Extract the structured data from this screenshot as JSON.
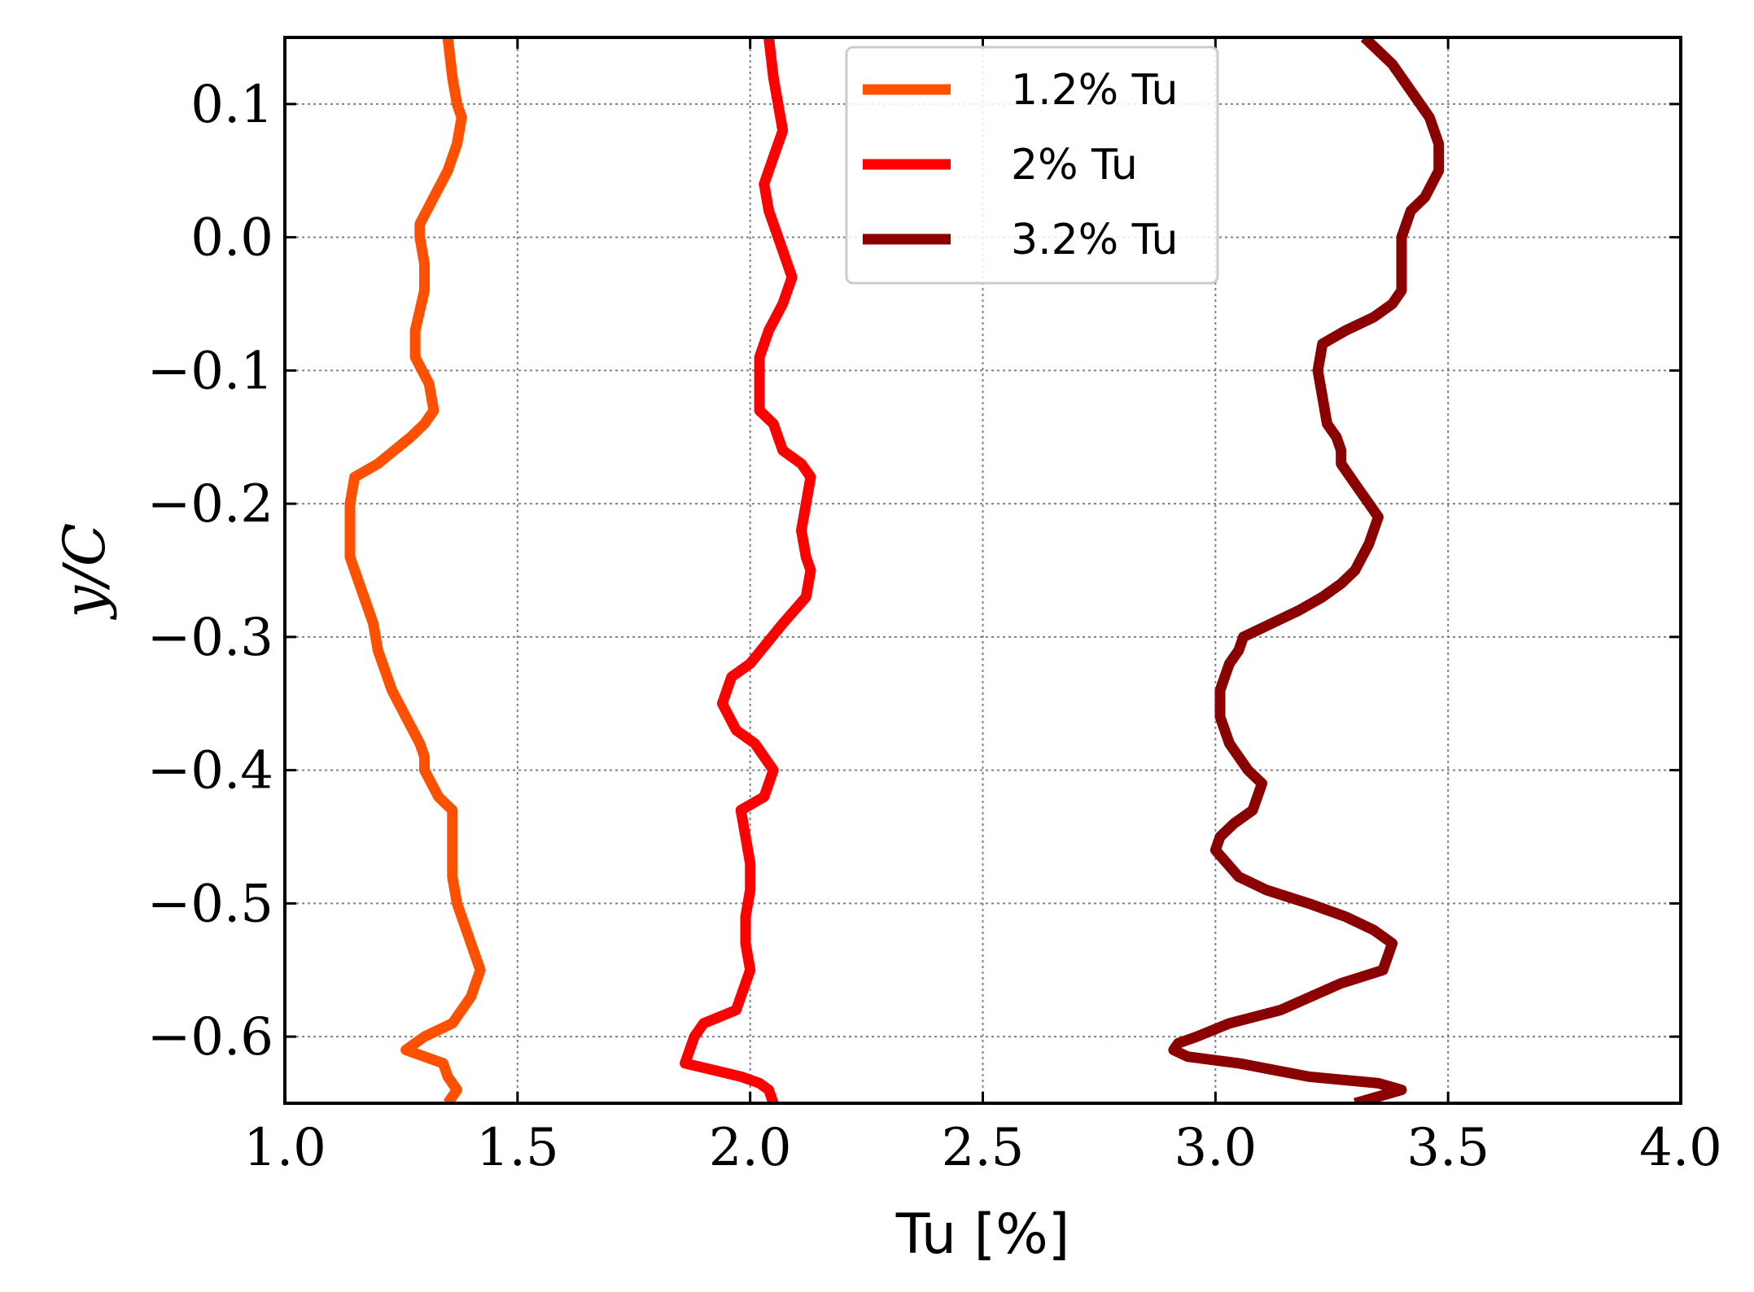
{
  "chart_data": {
    "type": "line",
    "title": "",
    "xlabel": "Tu [%]",
    "ylabel": "y/C",
    "xlim": [
      1.0,
      4.0
    ],
    "ylim": [
      -0.65,
      0.15
    ],
    "xticks": [
      1.0,
      1.5,
      2.0,
      2.5,
      3.0,
      3.5,
      4.0
    ],
    "xtick_labels": [
      "1.0",
      "1.5",
      "2.0",
      "2.5",
      "3.0",
      "3.5",
      "4.0"
    ],
    "yticks": [
      0.1,
      0.0,
      -0.1,
      -0.2,
      -0.3,
      -0.4,
      -0.5,
      -0.6
    ],
    "ytick_labels": [
      "0.1",
      "0.0",
      "−0.1",
      "−0.2",
      "−0.3",
      "−0.4",
      "−0.5",
      "−0.6"
    ],
    "grid": true,
    "legend_position": "top-center",
    "series": [
      {
        "name": "1.2% Tu",
        "color": "#ff5000",
        "x": [
          1.35,
          1.36,
          1.37,
          1.38,
          1.37,
          1.35,
          1.32,
          1.29,
          1.29,
          1.3,
          1.3,
          1.28,
          1.28,
          1.31,
          1.32,
          1.3,
          1.27,
          1.2,
          1.15,
          1.14,
          1.14,
          1.17,
          1.19,
          1.2,
          1.23,
          1.26,
          1.29,
          1.3,
          1.3,
          1.33,
          1.36,
          1.36,
          1.36,
          1.37,
          1.39,
          1.42,
          1.4,
          1.36,
          1.3,
          1.26,
          1.34,
          1.35,
          1.37,
          1.35
        ],
        "y": [
          0.15,
          0.12,
          0.1,
          0.09,
          0.07,
          0.05,
          0.03,
          0.01,
          0.0,
          -0.02,
          -0.04,
          -0.07,
          -0.09,
          -0.11,
          -0.13,
          -0.14,
          -0.15,
          -0.17,
          -0.18,
          -0.2,
          -0.24,
          -0.27,
          -0.29,
          -0.31,
          -0.34,
          -0.36,
          -0.38,
          -0.39,
          -0.4,
          -0.42,
          -0.43,
          -0.45,
          -0.48,
          -0.5,
          -0.52,
          -0.55,
          -0.57,
          -0.59,
          -0.6,
          -0.61,
          -0.62,
          -0.63,
          -0.64,
          -0.65
        ]
      },
      {
        "name": "2% Tu",
        "color": "#ff0000",
        "x": [
          2.04,
          2.05,
          2.06,
          2.07,
          2.05,
          2.03,
          2.04,
          2.06,
          2.08,
          2.09,
          2.07,
          2.04,
          2.02,
          2.02,
          2.02,
          2.05,
          2.07,
          2.11,
          2.13,
          2.12,
          2.11,
          2.12,
          2.13,
          2.12,
          2.07,
          2.0,
          1.96,
          1.94,
          1.97,
          2.01,
          2.05,
          2.03,
          1.98,
          1.99,
          2.0,
          2.0,
          1.99,
          1.99,
          2.0,
          1.98,
          1.97,
          1.9,
          1.88,
          1.86,
          1.92,
          1.98,
          2.02,
          2.04,
          2.05
        ],
        "y": [
          0.15,
          0.12,
          0.1,
          0.08,
          0.06,
          0.04,
          0.02,
          0.0,
          -0.02,
          -0.03,
          -0.05,
          -0.07,
          -0.09,
          -0.11,
          -0.13,
          -0.14,
          -0.16,
          -0.17,
          -0.18,
          -0.2,
          -0.22,
          -0.24,
          -0.25,
          -0.27,
          -0.29,
          -0.32,
          -0.33,
          -0.35,
          -0.37,
          -0.38,
          -0.4,
          -0.42,
          -0.43,
          -0.45,
          -0.47,
          -0.49,
          -0.51,
          -0.53,
          -0.55,
          -0.57,
          -0.58,
          -0.59,
          -0.6,
          -0.62,
          -0.625,
          -0.63,
          -0.635,
          -0.64,
          -0.65
        ]
      },
      {
        "name": "3.2% Tu",
        "color": "#8b0000",
        "x": [
          3.32,
          3.35,
          3.38,
          3.42,
          3.46,
          3.48,
          3.48,
          3.45,
          3.42,
          3.4,
          3.4,
          3.4,
          3.38,
          3.34,
          3.28,
          3.23,
          3.22,
          3.23,
          3.24,
          3.26,
          3.27,
          3.27,
          3.29,
          3.31,
          3.33,
          3.35,
          3.33,
          3.3,
          3.27,
          3.23,
          3.18,
          3.12,
          3.06,
          3.05,
          3.03,
          3.01,
          3.01,
          3.03,
          3.07,
          3.1,
          3.08,
          3.04,
          3.01,
          3.0,
          3.05,
          3.11,
          3.2,
          3.28,
          3.34,
          3.38,
          3.36,
          3.27,
          3.14,
          3.03,
          2.96,
          2.92,
          2.91,
          2.94,
          3.05,
          3.2,
          3.35,
          3.4,
          3.3
        ],
        "y": [
          0.15,
          0.14,
          0.13,
          0.11,
          0.09,
          0.07,
          0.05,
          0.03,
          0.02,
          0.0,
          -0.02,
          -0.04,
          -0.05,
          -0.06,
          -0.07,
          -0.08,
          -0.1,
          -0.12,
          -0.14,
          -0.15,
          -0.16,
          -0.17,
          -0.18,
          -0.19,
          -0.2,
          -0.21,
          -0.23,
          -0.25,
          -0.26,
          -0.27,
          -0.28,
          -0.29,
          -0.3,
          -0.31,
          -0.32,
          -0.34,
          -0.36,
          -0.38,
          -0.4,
          -0.41,
          -0.43,
          -0.44,
          -0.45,
          -0.46,
          -0.48,
          -0.49,
          -0.5,
          -0.51,
          -0.52,
          -0.53,
          -0.55,
          -0.56,
          -0.58,
          -0.59,
          -0.6,
          -0.605,
          -0.61,
          -0.615,
          -0.62,
          -0.63,
          -0.635,
          -0.64,
          -0.65
        ]
      }
    ]
  }
}
